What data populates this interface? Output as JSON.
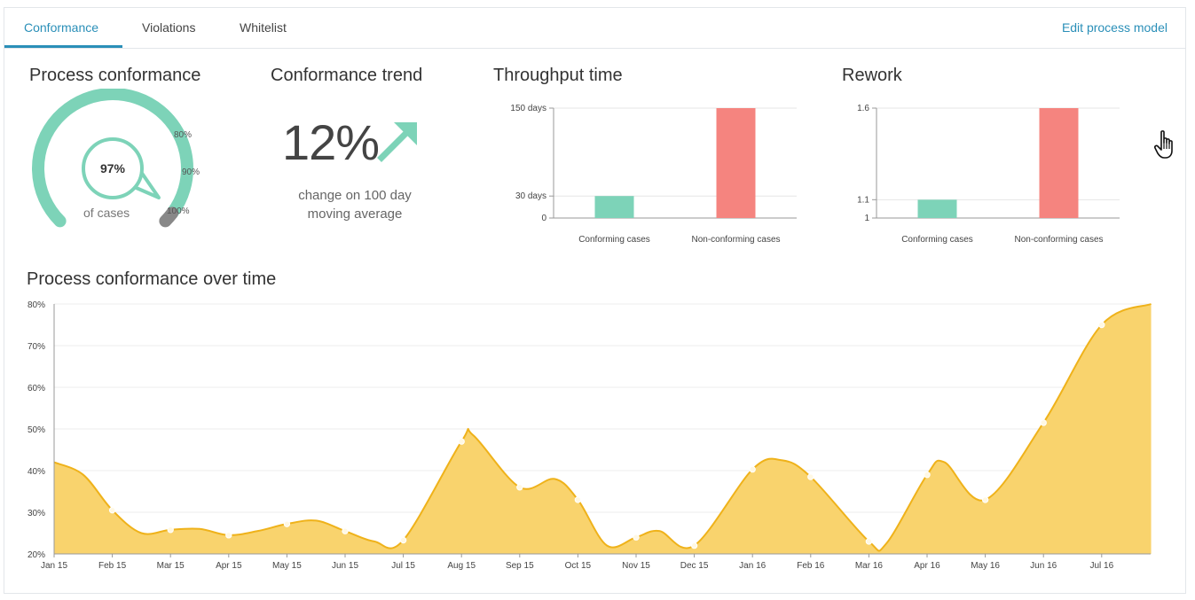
{
  "tabs": [
    {
      "label": "Conformance",
      "active": true
    },
    {
      "label": "Violations",
      "active": false
    },
    {
      "label": "Whitelist",
      "active": false
    }
  ],
  "edit_link": "Edit process model",
  "process_conformance": {
    "title": "Process conformance",
    "value_label": "97%",
    "value": 97,
    "caption": "of cases",
    "scale_labels": [
      "80%",
      "90%",
      "100%"
    ]
  },
  "conformance_trend": {
    "title": "Conformance trend",
    "value": "12%",
    "caption_line1": "change on 100 day",
    "caption_line2": "moving average",
    "arrow_icon": "arrow-up-right-icon"
  },
  "colors": {
    "accent_tab": "#2a8fb8",
    "conforming": "#7dd3b8",
    "non_conforming": "#f5847f",
    "gauge": "#7dd3b8",
    "area_fill": "#f9d36d",
    "area_line": "#efb21a"
  },
  "throughput_time": {
    "title": "Throughput time",
    "chart_data": {
      "type": "bar",
      "categories": [
        "Conforming cases",
        "Non-conforming cases"
      ],
      "values": [
        30,
        150
      ],
      "ylim": [
        0,
        150
      ],
      "yticks": [
        {
          "value": 0,
          "label": "0"
        },
        {
          "value": 30,
          "label": "30 days"
        },
        {
          "value": 150,
          "label": "150 days"
        }
      ]
    }
  },
  "rework": {
    "title": "Rework",
    "chart_data": {
      "type": "bar",
      "categories": [
        "Conforming cases",
        "Non-conforming cases"
      ],
      "values": [
        1.1,
        1.6
      ],
      "ylim": [
        1,
        1.6
      ],
      "yticks": [
        {
          "value": 1,
          "label": "1"
        },
        {
          "value": 1.1,
          "label": "1.1"
        },
        {
          "value": 1.6,
          "label": "1.6"
        }
      ]
    }
  },
  "conformance_over_time": {
    "title": "Process conformance over time",
    "chart_data": {
      "type": "area",
      "ylim": [
        20,
        80
      ],
      "yticks": [
        "20%",
        "30%",
        "40%",
        "50%",
        "60%",
        "70%",
        "80%"
      ],
      "ytick_values": [
        20,
        30,
        40,
        50,
        60,
        70,
        80
      ],
      "x_labels": [
        "Jan 15",
        "Feb 15",
        "Mar 15",
        "Apr 15",
        "May 15",
        "Jun 15",
        "Jul 15",
        "Aug 15",
        "Sep 15",
        "Oct 15",
        "Nov 15",
        "Dec 15",
        "Jan 16",
        "Feb 16",
        "Mar 16",
        "Apr 16",
        "May 16",
        "Jun 16",
        "Jul 16"
      ],
      "points": [
        {
          "x": 0.0,
          "y": 42
        },
        {
          "x": 0.5,
          "y": 39
        },
        {
          "x": 1.0,
          "y": 30.5
        },
        {
          "x": 1.5,
          "y": 25
        },
        {
          "x": 2.0,
          "y": 25.8
        },
        {
          "x": 2.5,
          "y": 26
        },
        {
          "x": 3.0,
          "y": 24.5
        },
        {
          "x": 3.5,
          "y": 25.5
        },
        {
          "x": 4.0,
          "y": 27.2
        },
        {
          "x": 4.5,
          "y": 28
        },
        {
          "x": 5.0,
          "y": 25.5
        },
        {
          "x": 5.5,
          "y": 23
        },
        {
          "x": 6.0,
          "y": 23.3
        },
        {
          "x": 7.0,
          "y": 47
        },
        {
          "x": 7.2,
          "y": 48.5
        },
        {
          "x": 8.0,
          "y": 36
        },
        {
          "x": 8.6,
          "y": 38
        },
        {
          "x": 9.0,
          "y": 33
        },
        {
          "x": 9.5,
          "y": 22
        },
        {
          "x": 10.0,
          "y": 24
        },
        {
          "x": 10.4,
          "y": 25.5
        },
        {
          "x": 11.0,
          "y": 22
        },
        {
          "x": 12.0,
          "y": 40.3
        },
        {
          "x": 12.5,
          "y": 42.5
        },
        {
          "x": 13.0,
          "y": 38.5
        },
        {
          "x": 14.0,
          "y": 23
        },
        {
          "x": 14.3,
          "y": 22.5
        },
        {
          "x": 15.0,
          "y": 39
        },
        {
          "x": 15.3,
          "y": 42
        },
        {
          "x": 16.0,
          "y": 33
        },
        {
          "x": 17.0,
          "y": 51.5
        },
        {
          "x": 18.0,
          "y": 75
        },
        {
          "x": 18.85,
          "y": 80
        }
      ],
      "markers": [
        {
          "x": 1.0,
          "y": 30.5
        },
        {
          "x": 2.0,
          "y": 25.8
        },
        {
          "x": 3.0,
          "y": 24.5
        },
        {
          "x": 4.0,
          "y": 27.2
        },
        {
          "x": 5.0,
          "y": 25.5
        },
        {
          "x": 6.0,
          "y": 23.3
        },
        {
          "x": 7.0,
          "y": 47
        },
        {
          "x": 8.0,
          "y": 36
        },
        {
          "x": 9.0,
          "y": 33
        },
        {
          "x": 10.0,
          "y": 24
        },
        {
          "x": 11.0,
          "y": 22
        },
        {
          "x": 12.0,
          "y": 40.3
        },
        {
          "x": 13.0,
          "y": 38.5
        },
        {
          "x": 14.0,
          "y": 23
        },
        {
          "x": 15.0,
          "y": 39
        },
        {
          "x": 16.0,
          "y": 33
        },
        {
          "x": 17.0,
          "y": 51.5
        },
        {
          "x": 18.0,
          "y": 75
        }
      ]
    }
  }
}
